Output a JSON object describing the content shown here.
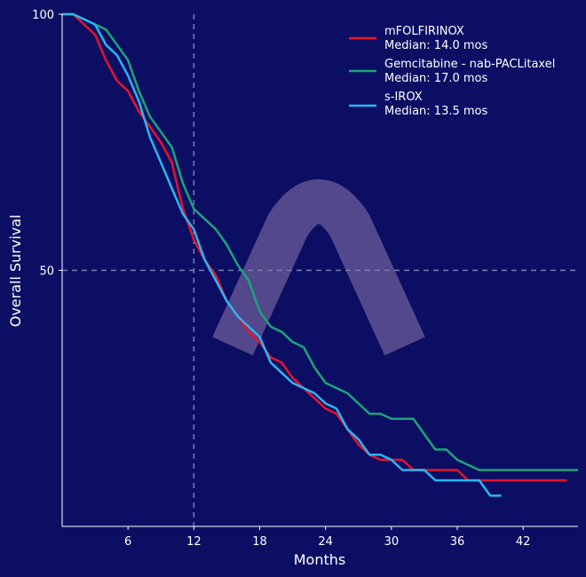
{
  "colors": {
    "background": "#0c0e63",
    "axis": "#ffffff",
    "refline": "#7b7db0",
    "watermark": "#5b4f8f"
  },
  "chart_data": {
    "type": "line",
    "title": "",
    "xlabel": "Months",
    "ylabel": "Overall Survival",
    "xlim": [
      0,
      47
    ],
    "ylim": [
      0,
      100
    ],
    "xticks": [
      6,
      12,
      18,
      24,
      30,
      36,
      42
    ],
    "yticks": [
      50,
      100
    ],
    "grid": false,
    "reference_lines": {
      "x": 12,
      "y": 50
    },
    "legend_position": "top-right",
    "series": [
      {
        "name": "mFOLFIRINOX",
        "median_label": "Median: 14.0 mos",
        "color": "#e8132d",
        "x": [
          0,
          1,
          2,
          3,
          4,
          5,
          6,
          7,
          8,
          9,
          10,
          11,
          12,
          13,
          14,
          15,
          16,
          17,
          18,
          19,
          20,
          21,
          22,
          23,
          24,
          25,
          26,
          27,
          28,
          29,
          30,
          31,
          32,
          33,
          34,
          35,
          36,
          37,
          38,
          39,
          40,
          41,
          42,
          43,
          44,
          46
        ],
        "y": [
          100,
          100,
          98,
          96,
          91,
          87,
          85,
          81,
          78,
          75,
          71,
          62,
          56,
          52,
          49,
          44,
          41,
          38,
          36,
          33,
          32,
          29,
          27,
          25,
          23,
          22,
          19,
          16,
          14,
          13,
          13,
          13,
          11,
          11,
          11,
          11,
          11,
          9,
          9,
          9,
          9,
          9,
          9,
          9,
          9,
          9
        ]
      },
      {
        "name": "Gemcitabine - nab-PACLitaxel",
        "median_label": "Median: 17.0 mos",
        "color": "#1aa57a",
        "x": [
          0,
          1,
          2,
          3,
          4,
          5,
          6,
          7,
          8,
          9,
          10,
          11,
          12,
          13,
          14,
          15,
          16,
          17,
          18,
          19,
          20,
          21,
          22,
          23,
          24,
          25,
          26,
          27,
          28,
          29,
          30,
          31,
          32,
          33,
          34,
          35,
          36,
          37,
          38,
          39,
          40,
          41,
          42,
          43,
          44,
          45,
          47
        ],
        "y": [
          100,
          100,
          99,
          98,
          97,
          94,
          91,
          85,
          80,
          77,
          74,
          67,
          62,
          60,
          58,
          55,
          51,
          48,
          42,
          39,
          38,
          36,
          35,
          31,
          28,
          27,
          26,
          24,
          22,
          22,
          21,
          21,
          21,
          18,
          15,
          15,
          13,
          12,
          11,
          11,
          11,
          11,
          11,
          11,
          11,
          11,
          11
        ]
      },
      {
        "name": "s-IROX",
        "median_label": "Median: 13.5 mos",
        "color": "#2ab7f0",
        "x": [
          0,
          1,
          2,
          3,
          4,
          5,
          6,
          7,
          8,
          9,
          10,
          11,
          12,
          13,
          14,
          15,
          16,
          17,
          18,
          19,
          20,
          21,
          22,
          23,
          24,
          25,
          26,
          27,
          28,
          29,
          30,
          31,
          32,
          33,
          34,
          35,
          36,
          37,
          38,
          39,
          40
        ],
        "y": [
          100,
          100,
          99,
          98,
          94,
          92,
          88,
          83,
          76,
          71,
          66,
          61,
          58,
          52,
          48,
          44,
          41,
          39,
          37,
          32,
          30,
          28,
          27,
          26,
          24,
          23,
          19,
          17,
          14,
          14,
          13,
          11,
          11,
          11,
          9,
          9,
          9,
          9,
          9,
          6,
          6
        ]
      }
    ]
  }
}
